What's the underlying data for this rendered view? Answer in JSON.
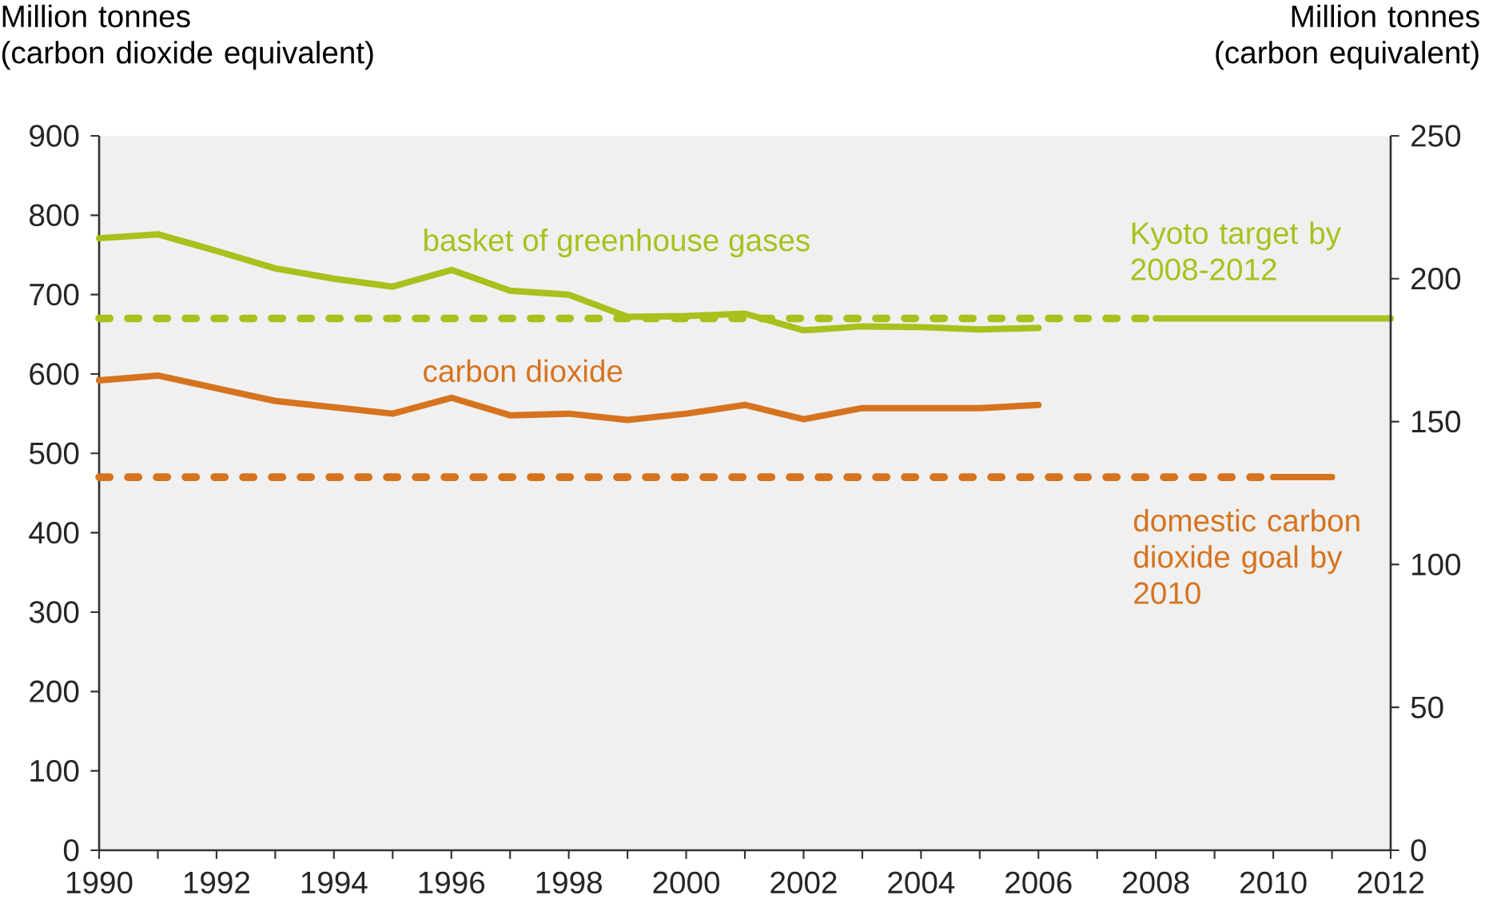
{
  "chart_data": {
    "type": "line",
    "ylabel": "Million tonnes (carbon dioxide equivalent)",
    "y2label": "Million tonnes (carbon equivalent)",
    "xlim": [
      1990,
      2012
    ],
    "xticks": [
      1990,
      {
        "value": 1991,
        "label": null
      },
      1992,
      {
        "value": 1993,
        "label": null
      },
      1994,
      {
        "value": 1995,
        "label": null
      },
      1996,
      {
        "value": 1997,
        "label": null
      },
      1998,
      {
        "value": 1999,
        "label": null
      },
      2000,
      {
        "value": 2001,
        "label": null
      },
      2002,
      {
        "value": 2003,
        "label": null
      },
      2004,
      {
        "value": 2005,
        "label": null
      },
      2006,
      {
        "value": 2007,
        "label": null
      },
      2008,
      {
        "value": 2009,
        "label": null
      },
      2010,
      {
        "value": 2011,
        "label": null
      },
      2012
    ],
    "ylim": [
      0,
      900
    ],
    "yticks": [
      0,
      100,
      200,
      300,
      400,
      500,
      600,
      700,
      800,
      900
    ],
    "y2lim": [
      0,
      250
    ],
    "y2ticks": [
      0,
      50,
      100,
      150,
      200,
      250
    ],
    "marker": "none",
    "series": [
      {
        "name": "basket of greenhouse gases",
        "color": "#a9c01d",
        "line_style": "solid",
        "x": [
          1990,
          1991,
          1992,
          1993,
          1994,
          1995,
          1996,
          1997,
          1998,
          1999,
          2000,
          2001,
          2002,
          2003,
          2004,
          2005,
          2006
        ],
        "values": [
          771,
          776,
          755,
          733,
          720,
          710,
          731,
          705,
          700,
          672,
          673,
          676,
          655,
          660,
          659,
          656,
          658
        ]
      },
      {
        "name": "carbon dioxide",
        "color": "#d6731f",
        "line_style": "solid",
        "x": [
          1990,
          1991,
          1992,
          1993,
          1994,
          1995,
          1996,
          1997,
          1998,
          1999,
          2000,
          2001,
          2002,
          2003,
          2004,
          2005,
          2006
        ],
        "values": [
          592,
          598,
          582,
          566,
          558,
          550,
          570,
          548,
          550,
          542,
          550,
          561,
          543,
          557,
          557,
          557,
          561
        ]
      },
      {
        "color": "#a9c01d",
        "line_style": "dotted",
        "x": [
          1990,
          2008
        ],
        "values": [
          670,
          670
        ]
      },
      {
        "name": "Kyoto target by 2008-2012",
        "color": "#a9c01d",
        "line_style": "solid",
        "x": [
          2008,
          2012
        ],
        "values": [
          670,
          670
        ]
      },
      {
        "color": "#d6731f",
        "line_style": "dotted",
        "x": [
          1990,
          2010
        ],
        "values": [
          470,
          470
        ]
      },
      {
        "name": "domestic carbon dioxide goal by 2010",
        "color": "#d6731f",
        "line_style": "solid",
        "x": [
          2010,
          2011
        ],
        "values": [
          470,
          470
        ]
      }
    ]
  }
}
